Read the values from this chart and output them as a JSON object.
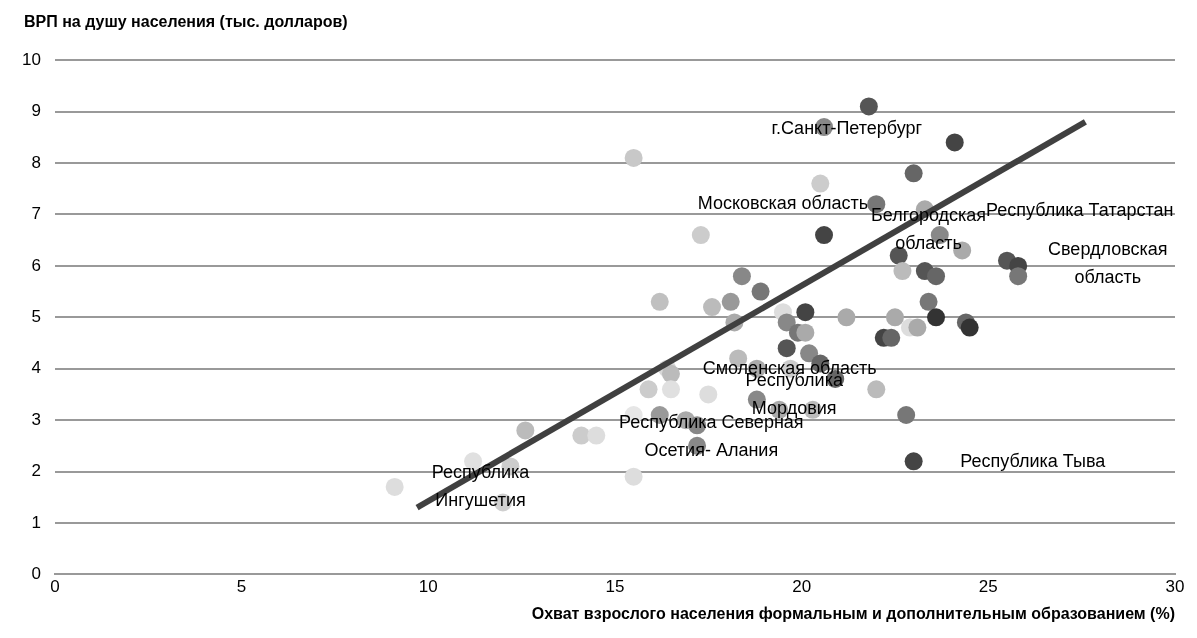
{
  "chart_data": {
    "type": "scatter",
    "ylabel": "ВРП на душу населения (тыс. долларов)",
    "xlabel": "Охват взрослого населения формальным и дополнительным образованием (%)",
    "xlim": [
      0,
      30
    ],
    "xticks": [
      0,
      5,
      10,
      15,
      20,
      25,
      30
    ],
    "ylim": [
      0,
      10
    ],
    "yticks": [
      0,
      1,
      2,
      3,
      4,
      5,
      6,
      7,
      8,
      9,
      10
    ],
    "grid": "y",
    "legend": false,
    "series": [
      {
        "marker": "circle",
        "x": [
          9.1,
          11.2,
          12.0,
          12.2,
          12.6,
          14.1,
          14.5,
          15.5,
          15.5,
          15.5,
          15.9,
          16.2,
          16.2,
          16.4,
          16.5,
          16.5,
          16.9,
          17.2,
          17.2,
          17.3,
          17.5,
          17.6,
          18.1,
          18.2,
          18.3,
          18.4,
          18.8,
          18.8,
          18.9,
          19.4,
          19.5,
          19.6,
          19.6,
          19.7,
          19.9,
          20.1,
          20.1,
          20.2,
          20.3,
          20.5,
          20.5,
          20.6,
          20.6,
          20.9,
          21.2,
          21.8,
          22.0,
          22.0,
          22.2,
          22.4,
          22.5,
          22.6,
          22.7,
          22.8,
          22.9,
          23.0,
          23.0,
          23.1,
          23.3,
          23.3,
          23.4,
          23.6,
          23.6,
          23.7,
          24.1,
          24.3,
          24.4,
          24.5,
          25.5,
          25.8,
          25.8
        ],
        "values": [
          1.7,
          2.2,
          1.4,
          2.1,
          2.8,
          2.7,
          2.7,
          1.9,
          8.1,
          3.1,
          3.6,
          3.1,
          5.3,
          4.0,
          3.9,
          3.6,
          3.0,
          2.9,
          2.5,
          6.6,
          3.5,
          5.2,
          5.3,
          4.9,
          4.2,
          5.8,
          4.0,
          3.4,
          5.5,
          3.2,
          5.1,
          4.9,
          4.4,
          4.0,
          4.7,
          5.1,
          4.7,
          4.3,
          3.2,
          7.6,
          4.1,
          8.7,
          6.6,
          3.8,
          5.0,
          9.1,
          7.2,
          3.6,
          4.6,
          4.6,
          5.0,
          6.2,
          5.9,
          3.1,
          4.8,
          7.8,
          2.2,
          4.8,
          5.9,
          7.1,
          5.3,
          5.0,
          5.8,
          6.6,
          8.4,
          6.3,
          4.9,
          4.8,
          6.1,
          6.0,
          5.8
        ],
        "colors": [
          "#dddddd",
          "#e0e0e0",
          "#cfcfcf",
          "#cccccc",
          "#bbbbbb",
          "#cccccc",
          "#dddddd",
          "#dddddd",
          "#c8c8c8",
          "#e6e6e6",
          "#cccccc",
          "#999999",
          "#c0c0c0",
          "#d8d8d8",
          "#bbbbbb",
          "#e0e0e0",
          "#aaaaaa",
          "#888888",
          "#888888",
          "#cccccc",
          "#dddddd",
          "#bbbbbb",
          "#999999",
          "#aaaaaa",
          "#bbbbbb",
          "#888888",
          "#aaaaaa",
          "#888888",
          "#777777",
          "#aaaaaa",
          "#dddddd",
          "#888888",
          "#555555",
          "#cccccc",
          "#777777",
          "#444444",
          "#aaaaaa",
          "#888888",
          "#bbbbbb",
          "#cccccc",
          "#666666",
          "#888888",
          "#444444",
          "#666666",
          "#aaaaaa",
          "#555555",
          "#777777",
          "#bbbbbb",
          "#444444",
          "#666666",
          "#aaaaaa",
          "#555555",
          "#bbbbbb",
          "#777777",
          "#dddddd",
          "#666666",
          "#444444",
          "#aaaaaa",
          "#555555",
          "#aaaaaa",
          "#777777",
          "#333333",
          "#666666",
          "#888888",
          "#444444",
          "#aaaaaa",
          "#666666",
          "#333333",
          "#555555",
          "#444444",
          "#777777"
        ]
      },
      {
        "type": "line",
        "x": [
          9.7,
          27.6
        ],
        "values": [
          1.3,
          8.8
        ],
        "color": "#404040"
      }
    ],
    "annotations": [
      "г.Санкт-Петербург",
      "Московская область",
      "Республика Татарстан",
      "Белгородская\nобласть",
      "Свердловская\nобласть",
      "Смоленская область",
      "Республика\nМордовия",
      "Республика Северная\nОсетия- Алания",
      "Республика\nИнгушетия",
      "Республика Тыва"
    ]
  }
}
